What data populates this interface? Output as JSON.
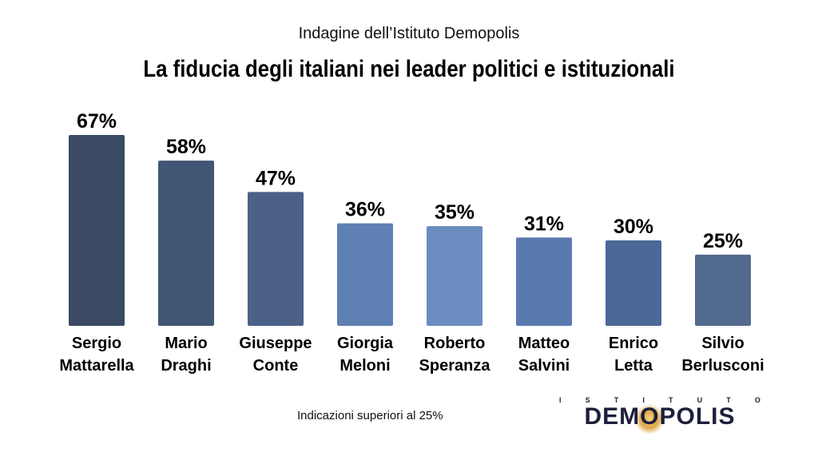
{
  "header": {
    "subtitle": "Indagine dell’Istituto Demopolis",
    "title": "La fiducia degli italiani nei leader politici e istituzionali"
  },
  "footnote": "Indicazioni superiori al 25%",
  "logo": {
    "top_letters": [
      "I",
      "S",
      "T",
      "I",
      "T",
      "U",
      "T",
      "O"
    ],
    "main": "DEMOPOLIS"
  },
  "colors": {
    "bars": [
      "#3a4a63",
      "#415675",
      "#4b6188",
      "#5f80b2",
      "#6a8cc0",
      "#5a7aaf",
      "#4a6898",
      "#526a8d"
    ]
  },
  "chart_data": {
    "type": "bar",
    "categories": [
      [
        "Sergio",
        "Mattarella"
      ],
      [
        "Mario",
        "Draghi"
      ],
      [
        "Giuseppe",
        "Conte"
      ],
      [
        "Giorgia",
        "Meloni"
      ],
      [
        "Roberto",
        "Speranza"
      ],
      [
        "Matteo",
        "Salvini"
      ],
      [
        "Enrico",
        "Letta"
      ],
      [
        "Silvio",
        "Berlusconi"
      ]
    ],
    "values": [
      67,
      58,
      47,
      36,
      35,
      31,
      30,
      25
    ],
    "value_labels": [
      "67%",
      "58%",
      "47%",
      "36%",
      "35%",
      "31%",
      "30%",
      "25%"
    ],
    "title": "La fiducia degli italiani nei leader politici e istituzionali",
    "xlabel": "",
    "ylabel": "",
    "ylim": [
      0,
      67
    ],
    "grid": false,
    "legend": "none"
  }
}
